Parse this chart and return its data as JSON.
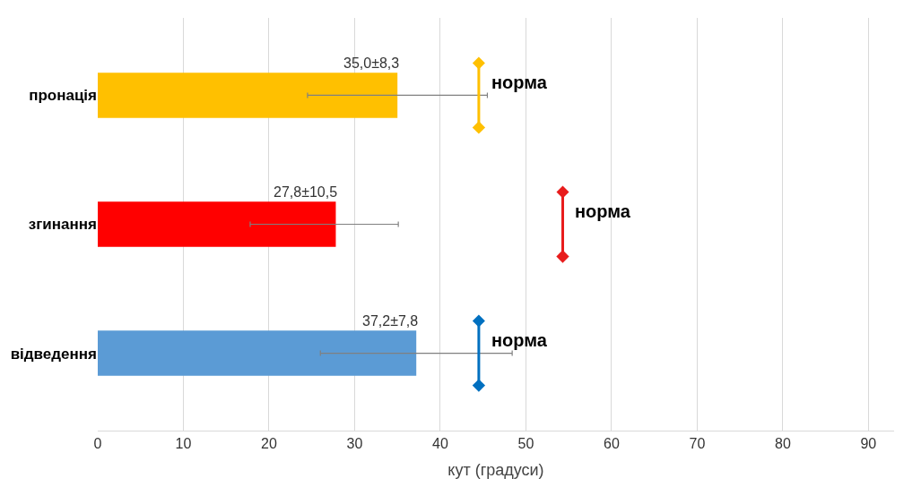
{
  "chart_data": {
    "type": "bar",
    "orientation": "horizontal",
    "xlabel": "кут (градуси)",
    "categories": [
      "пронація",
      "згинання",
      "відведення"
    ],
    "series": [
      {
        "values": [
          35.0,
          27.8,
          37.2
        ],
        "colors": [
          "#ffc000",
          "#ff0000",
          "#5b9bd5"
        ],
        "errors": [
          [
            24.5,
            45.5
          ],
          [
            17.8,
            35.1
          ],
          [
            26.0,
            48.4
          ]
        ],
        "value_labels": [
          "35,0±8,3",
          "27,8±10,5",
          "37,2±7,8"
        ]
      },
      {
        "type": "scatter",
        "marker": "diamond",
        "values": [
          44.5,
          54.3,
          44.5
        ],
        "colors": [
          "#ffc000",
          "#e81c1c",
          "#0070c0"
        ],
        "value_labels": [
          "норма",
          "норма",
          "норма"
        ]
      }
    ],
    "xlim": [
      0,
      93
    ],
    "xticks": [
      0,
      10,
      20,
      30,
      40,
      50,
      60,
      70,
      80,
      90
    ],
    "grid": "x"
  }
}
